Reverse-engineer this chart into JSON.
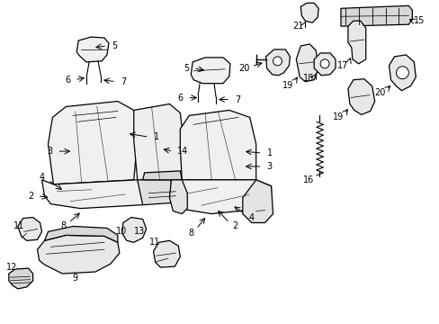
{
  "figsize": [
    4.89,
    3.6
  ],
  "dpi": 100,
  "background_color": "#ffffff",
  "line_color": "#000000",
  "seat_color": "#f0f0f0",
  "stripe_color": "#d8d8d8",
  "part_color": "#e8e8e8",
  "label_fontsize": 7
}
